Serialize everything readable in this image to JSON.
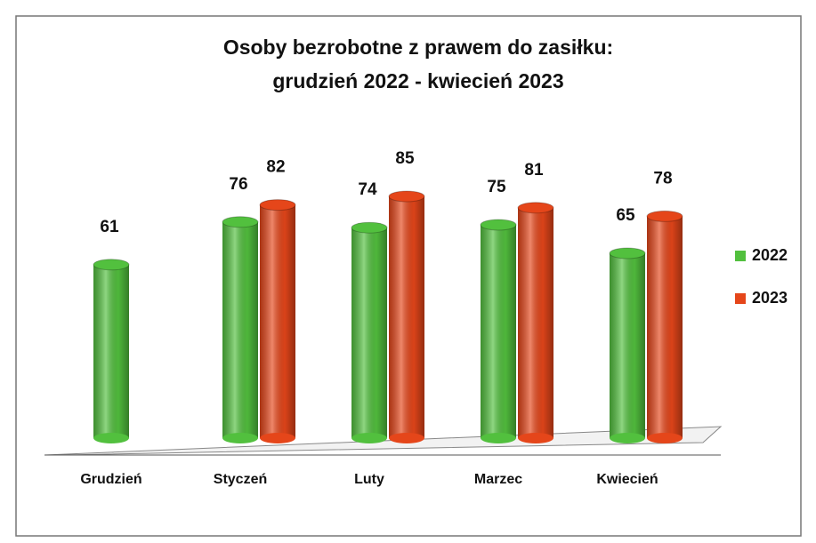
{
  "chart_data": {
    "type": "bar",
    "title": [
      "Osoby bezrobotne z prawem do zasiłku:",
      "grudzień 2022 - kwiecień 2023"
    ],
    "categories": [
      "Grudzień",
      "Styczeń",
      "Luty",
      "Marzec",
      "Kwiecień"
    ],
    "series": [
      {
        "name": "2022",
        "color": "#52c03e",
        "values": [
          61,
          76,
          74,
          75,
          65
        ]
      },
      {
        "name": "2023",
        "color": "#e5461a",
        "values": [
          null,
          82,
          85,
          81,
          78
        ]
      }
    ],
    "legend": "right"
  }
}
